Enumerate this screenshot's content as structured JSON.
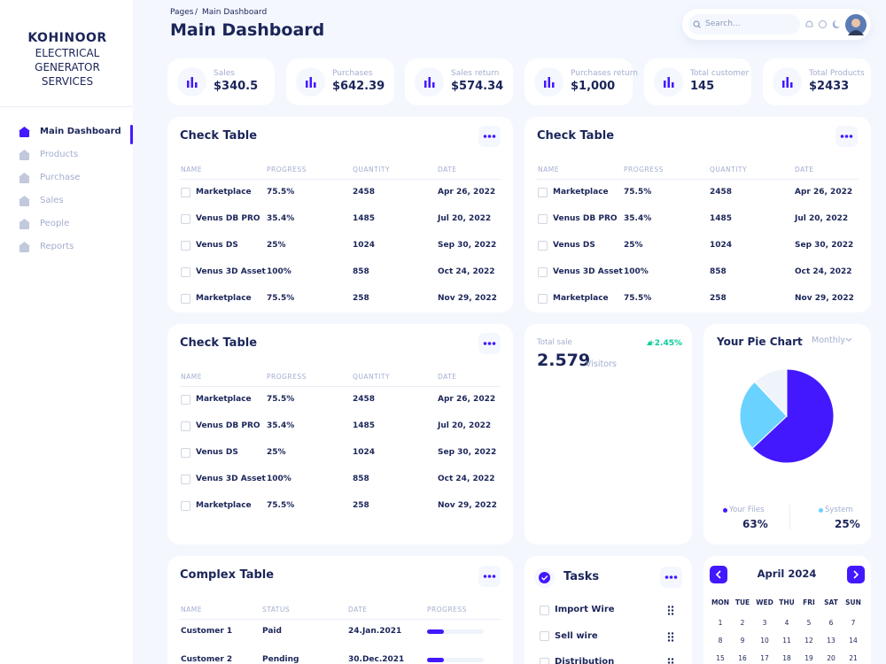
{
  "sidebar": {
    "brand": "KOHINOOR",
    "subtitle": "ELECTRICAL GENERATOR SERVICES",
    "nav": [
      "Main Dashboard",
      "Products",
      "Purchase",
      "Sales",
      "People",
      "Reports"
    ]
  },
  "header": {
    "breadcrumb": [
      "Pages",
      "Main Dashboard"
    ],
    "separator": "/",
    "title": "Main Dashboard",
    "search": "Search..."
  },
  "stats": [
    {
      "label": "Sales",
      "value": "$340.5"
    },
    {
      "label": "Purchases",
      "value": "$642.39"
    },
    {
      "label": "Sales return",
      "value": "$574.34"
    },
    {
      "label": "Purchases return",
      "value": "$1,000"
    },
    {
      "label": "Total customer",
      "value": "145"
    },
    {
      "label": "Total Products",
      "value": "$2433"
    }
  ],
  "check_tables": [
    {
      "title": "Check Table",
      "columns": [
        "NAME",
        "PROGRESS",
        "QUANTITY",
        "DATE"
      ],
      "rows": [
        [
          "Marketplace",
          "75.5%",
          "2458",
          "Apr 26, 2022"
        ],
        [
          "Venus DB PRO",
          "35.4%",
          "1485",
          "Jul 20, 2022"
        ],
        [
          "Venus DS",
          "25%",
          "1024",
          "Sep 30, 2022"
        ],
        [
          "Venus 3D Asset",
          "100%",
          "858",
          "Oct 24, 2022"
        ],
        [
          "Marketplace",
          "75.5%",
          "258",
          "Nov 29, 2022"
        ]
      ]
    },
    {
      "title": "Check Table",
      "columns": [
        "NAME",
        "PROGRESS",
        "QUANTITY",
        "DATE"
      ],
      "rows": [
        [
          "Marketplace",
          "75.5%",
          "2458",
          "Apr 26, 2022"
        ],
        [
          "Venus DB PRO",
          "35.4%",
          "1485",
          "Jul 20, 2022"
        ],
        [
          "Venus DS",
          "25%",
          "1024",
          "Sep 30, 2022"
        ],
        [
          "Venus 3D Asset",
          "100%",
          "858",
          "Oct 24, 2022"
        ],
        [
          "Marketplace",
          "75.5%",
          "258",
          "Nov 29, 2022"
        ]
      ]
    },
    {
      "title": "Check Table",
      "columns": [
        "NAME",
        "PROGRESS",
        "QUANTITY",
        "DATE"
      ],
      "rows": [
        [
          "Marketplace",
          "75.5%",
          "2458",
          "Apr 26, 2022"
        ],
        [
          "Venus DB PRO",
          "35.4%",
          "1485",
          "Jul 20, 2022"
        ],
        [
          "Venus DS",
          "25%",
          "1024",
          "Sep 30, 2022"
        ],
        [
          "Venus 3D Asset",
          "100%",
          "858",
          "Oct 24, 2022"
        ],
        [
          "Marketplace",
          "75.5%",
          "258",
          "Nov 29, 2022"
        ]
      ]
    }
  ],
  "total_sale": {
    "label": "Total sale",
    "value": "2.579",
    "unit": "Visitors",
    "change": "+2.45%"
  },
  "pie": {
    "title": "Your Pie Chart",
    "period": "Monthly",
    "slices": [
      {
        "name": "Your Files",
        "value": 63,
        "label": "63%",
        "color": "#4318ff"
      },
      {
        "name": "System",
        "value": 25,
        "label": "25%",
        "color": "#6ad2ff"
      },
      {
        "name": null,
        "value": 12,
        "label": null,
        "color": "#eff4fb"
      }
    ]
  },
  "complex_table": {
    "title": "Complex Table",
    "columns": [
      "NAME",
      "STATUS",
      "DATE",
      "PROGRESS"
    ],
    "rows": [
      {
        "name": "Customer 1",
        "status": "Paid",
        "date": "24.Jan.2021",
        "progress": 30
      },
      {
        "name": "Customer 2",
        "status": "Pending",
        "date": "30.Dec.2021",
        "progress": 30
      }
    ]
  },
  "tasks": {
    "title": "Tasks",
    "items": [
      "Import Wire",
      "Sell wire",
      "Distribution"
    ]
  },
  "calendar": {
    "month": "April 2024",
    "weekdays": [
      "MON",
      "TUE",
      "WED",
      "THU",
      "FRI",
      "SAT",
      "SUN"
    ],
    "days": [
      1,
      2,
      3,
      4,
      5,
      6,
      7,
      8,
      9,
      10,
      11,
      12,
      13,
      14,
      15,
      16,
      17,
      18,
      19,
      20,
      21
    ]
  }
}
